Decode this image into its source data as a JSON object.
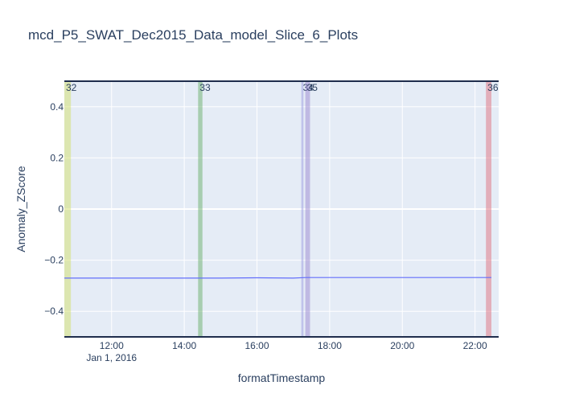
{
  "chart_data": {
    "type": "line",
    "title": "mcd_P5_SWAT_Dec2015_Data_model_Slice_6_Plots",
    "xlabel": "formatTimestamp",
    "ylabel": "Anomaly_ZScore",
    "x_date_label": "Jan 1, 2016",
    "x_range_hours": [
      10.7,
      22.65
    ],
    "x_ticks": [
      {
        "hour": 12,
        "label": "12:00"
      },
      {
        "hour": 14,
        "label": "14:00"
      },
      {
        "hour": 16,
        "label": "16:00"
      },
      {
        "hour": 18,
        "label": "18:00"
      },
      {
        "hour": 20,
        "label": "20:00"
      },
      {
        "hour": 22,
        "label": "22:00"
      }
    ],
    "ylim": [
      -0.5,
      0.5
    ],
    "y_ticks": [
      {
        "value": 0.4,
        "label": "0.4"
      },
      {
        "value": 0.2,
        "label": "0.2"
      },
      {
        "value": 0,
        "label": "0"
      },
      {
        "value": -0.2,
        "label": "−0.2"
      },
      {
        "value": -0.4,
        "label": "−0.4"
      }
    ],
    "grid": true,
    "series": [
      {
        "name": "Anomaly_ZScore",
        "color": "#636efa",
        "x_hours": [
          10.7,
          12.0,
          13.0,
          14.0,
          15.0,
          16.0,
          17.0,
          17.35,
          18.0,
          19.0,
          20.0,
          21.0,
          22.0,
          22.45
        ],
        "values": [
          -0.27,
          -0.27,
          -0.27,
          -0.27,
          -0.27,
          -0.269,
          -0.27,
          -0.268,
          -0.268,
          -0.268,
          -0.268,
          -0.268,
          -0.268,
          -0.268
        ]
      }
    ],
    "anomaly_bands": [
      {
        "label": "32",
        "start": 10.7,
        "end": 10.88,
        "color": "#d4df6a"
      },
      {
        "label": "33",
        "start": 14.38,
        "end": 14.5,
        "color": "#6aad6a"
      },
      {
        "label": "34",
        "start": 17.22,
        "end": 17.28,
        "color": "#9a9ae0"
      },
      {
        "label": "35",
        "start": 17.33,
        "end": 17.46,
        "color": "#9a86cf"
      },
      {
        "label": "36",
        "start": 22.3,
        "end": 22.45,
        "color": "#e0707e"
      }
    ]
  }
}
